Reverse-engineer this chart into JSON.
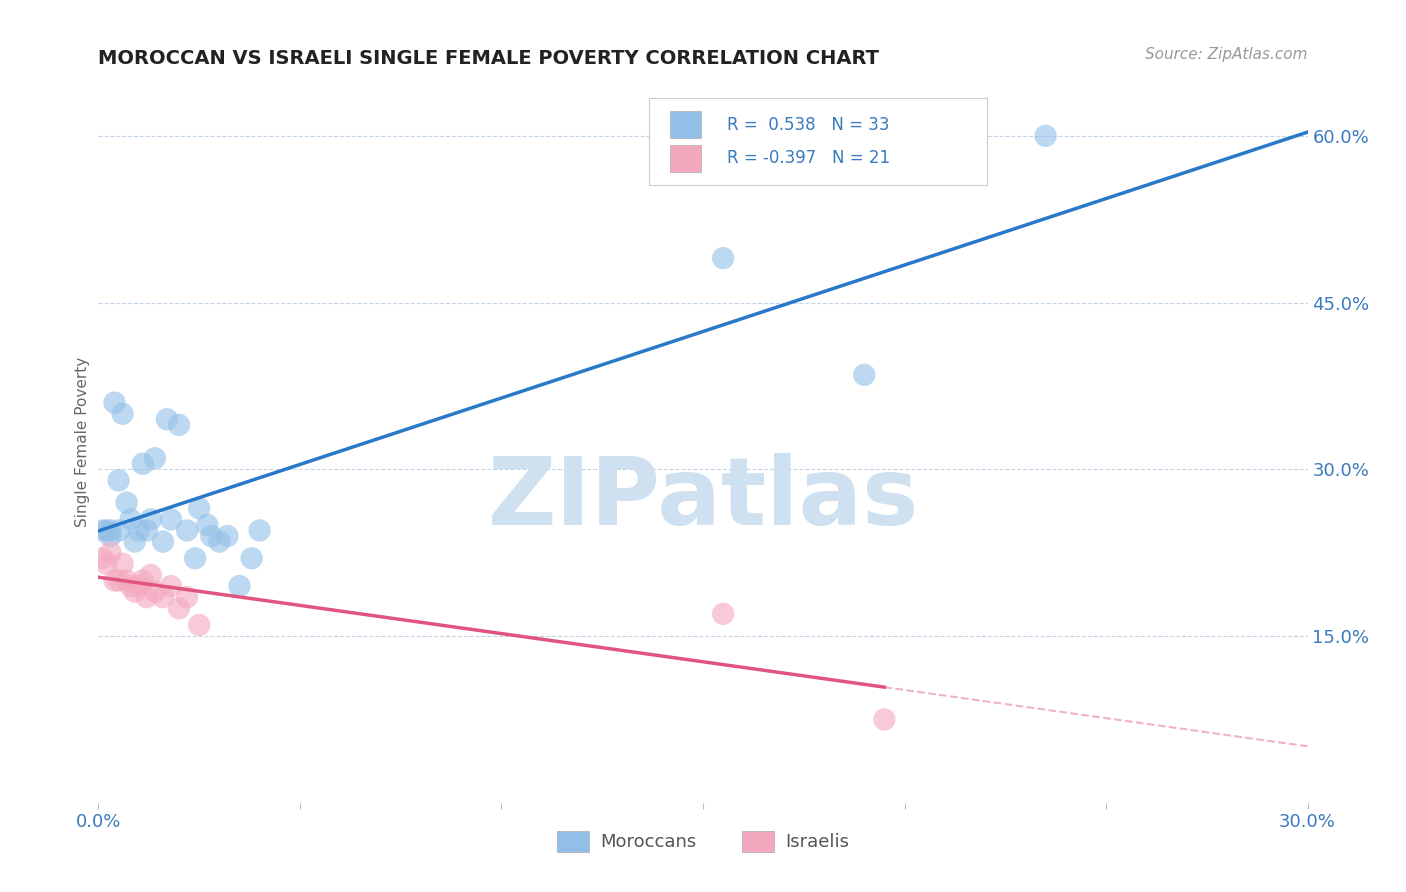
{
  "title": "MOROCCAN VS ISRAELI SINGLE FEMALE POVERTY CORRELATION CHART",
  "source": "Source: ZipAtlas.com",
  "ylabel": "Single Female Poverty",
  "xlim": [
    0.0,
    0.3
  ],
  "ylim": [
    0.0,
    0.65
  ],
  "xticks": [
    0.0,
    0.05,
    0.1,
    0.15,
    0.2,
    0.25,
    0.3
  ],
  "xticklabels": [
    "0.0%",
    "",
    "",
    "",
    "",
    "",
    "30.0%"
  ],
  "yticks": [
    0.0,
    0.15,
    0.3,
    0.45,
    0.6
  ],
  "yticklabels": [
    "",
    "15.0%",
    "30.0%",
    "45.0%",
    "60.0%"
  ],
  "moroccan_color": "#92bfe8",
  "israeli_color": "#f4a8be",
  "blue_line_color": "#2979c9",
  "pink_line_color": "#e05580",
  "R_moroccan": 0.538,
  "N_moroccan": 33,
  "R_israeli": -0.397,
  "N_israeli": 21,
  "moroccan_x": [
    0.001,
    0.002,
    0.003,
    0.003,
    0.004,
    0.005,
    0.005,
    0.006,
    0.007,
    0.008,
    0.009,
    0.01,
    0.011,
    0.012,
    0.013,
    0.014,
    0.016,
    0.017,
    0.018,
    0.02,
    0.022,
    0.024,
    0.025,
    0.027,
    0.028,
    0.03,
    0.032,
    0.035,
    0.038,
    0.04,
    0.155,
    0.19,
    0.235
  ],
  "moroccan_y": [
    0.245,
    0.245,
    0.245,
    0.24,
    0.36,
    0.29,
    0.245,
    0.35,
    0.27,
    0.255,
    0.235,
    0.245,
    0.305,
    0.245,
    0.255,
    0.31,
    0.235,
    0.345,
    0.255,
    0.34,
    0.245,
    0.22,
    0.265,
    0.25,
    0.24,
    0.235,
    0.24,
    0.195,
    0.22,
    0.245,
    0.49,
    0.385,
    0.6
  ],
  "israeli_x": [
    0.001,
    0.002,
    0.003,
    0.004,
    0.005,
    0.006,
    0.007,
    0.008,
    0.009,
    0.01,
    0.011,
    0.012,
    0.013,
    0.014,
    0.016,
    0.018,
    0.02,
    0.022,
    0.025,
    0.155,
    0.195
  ],
  "israeli_y": [
    0.22,
    0.215,
    0.225,
    0.2,
    0.2,
    0.215,
    0.2,
    0.195,
    0.19,
    0.195,
    0.2,
    0.185,
    0.205,
    0.19,
    0.185,
    0.195,
    0.175,
    0.185,
    0.16,
    0.17,
    0.075
  ],
  "background_color": "#ffffff",
  "grid_color": "#c5d5e8",
  "watermark_text": "ZIPatlas",
  "watermark_color": "#cfe0f0",
  "legend_moroccan": "Moroccans",
  "legend_israeli": "Israelis"
}
